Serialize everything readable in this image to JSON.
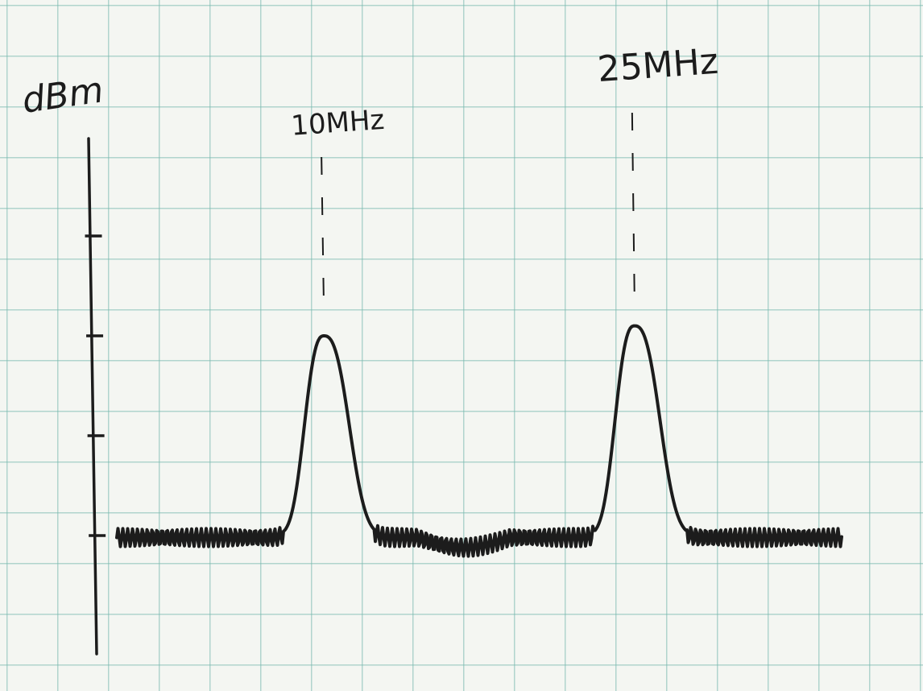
{
  "chart_data": {
    "type": "line",
    "ylabel": "dBm",
    "xlabel": "",
    "title": "",
    "y_ticks": 4,
    "baseline_level": 0,
    "ylim": [
      -1.3,
      4.3
    ],
    "xlim": [
      0,
      35
    ],
    "grid": true,
    "peaks": [
      {
        "label": "10MHz",
        "x": 10,
        "y": 2
      },
      {
        "label": "25MHz",
        "x": 25,
        "y": 2.1
      }
    ],
    "colors": {
      "line": "#1c1c1c",
      "grid": "#7ab9af",
      "paper": "#f4f6f2"
    }
  }
}
